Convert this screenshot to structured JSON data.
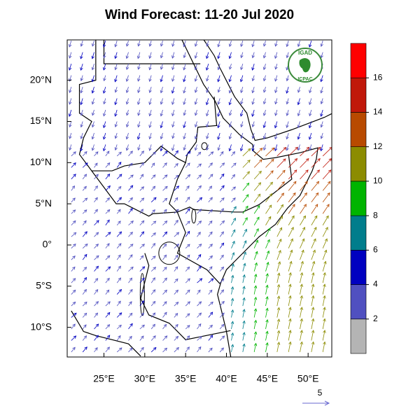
{
  "map": {
    "title": "Wind Forecast: 11-20 Jul 2020",
    "lon_lim": [
      20.5,
      52.9
    ],
    "lat_lim": [
      -13.6,
      24.9
    ],
    "lon_ticks": [
      {
        "value": 25,
        "label": "25°E"
      },
      {
        "value": 30,
        "label": "30°E"
      },
      {
        "value": 35,
        "label": "35°E"
      },
      {
        "value": 40,
        "label": "40°E"
      },
      {
        "value": 45,
        "label": "45°E"
      },
      {
        "value": 50,
        "label": "50°E"
      }
    ],
    "lat_ticks": [
      {
        "value": 20,
        "label": "20°N"
      },
      {
        "value": 15,
        "label": "15°N"
      },
      {
        "value": 10,
        "label": "10°N"
      },
      {
        "value": 5,
        "label": "5°N"
      },
      {
        "value": 0,
        "label": "0°"
      },
      {
        "value": -5,
        "label": "5°S"
      },
      {
        "value": -10,
        "label": "10°S"
      }
    ],
    "colorbar": {
      "lim": [
        0,
        18
      ],
      "ticks": [
        2,
        4,
        6,
        8,
        10,
        12,
        14,
        16
      ],
      "colors": [
        "#b4b4b4",
        "#5050c0",
        "#0000c0",
        "#007d8c",
        "#00b400",
        "#8c8c00",
        "#b84a00",
        "#c0180a",
        "#ff0000"
      ]
    },
    "reference_vector": {
      "label": "5"
    },
    "logo": {
      "top": "IGAD",
      "bottom": "ICPAC"
    }
  }
}
